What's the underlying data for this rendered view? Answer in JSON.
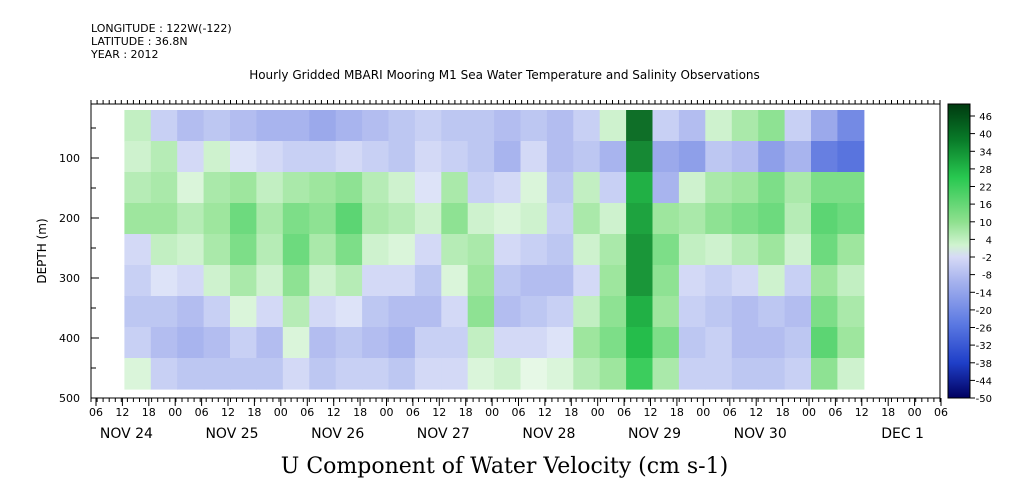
{
  "header": {
    "longitude": "LONGITUDE : 122W(-122)",
    "latitude": "LATITUDE : 36.8N",
    "year": "YEAR : 2012",
    "title": "Hourly Gridded MBARI Mooring M1 Sea Water Temperature and Salinity Observations"
  },
  "caption": "U Component of Water Velocity (cm s-1)",
  "colors": {
    "strong_negative": "#000060",
    "mid_negative": "#3a5bd8",
    "weak_negative": "#a8b4ee",
    "weak_positive": "#b4ecb4",
    "mid_positive": "#28c850",
    "strong_positive": "#003a10",
    "missing": "#ffffff"
  },
  "chart_data": {
    "type": "heatmap",
    "title": "Hourly Gridded MBARI Mooring M1 Sea Water Temperature and Salinity Observations",
    "ylabel": "DEPTH (m)",
    "y_inverted": true,
    "ylim": [
      500,
      10
    ],
    "y_ticks": [
      100,
      200,
      300,
      400,
      500
    ],
    "x_tick_labels": [
      "06",
      "12",
      "18",
      "00",
      "06",
      "12",
      "18",
      "00",
      "06",
      "12",
      "18",
      "00",
      "06",
      "12",
      "18",
      "00",
      "06",
      "12",
      "18",
      "00",
      "06",
      "12",
      "18",
      "00",
      "06",
      "12",
      "18",
      "00",
      "06",
      "12",
      "18",
      "00",
      "06"
    ],
    "day_labels": [
      "NOV 24",
      "NOV 25",
      "NOV 26",
      "NOV 27",
      "NOV 28",
      "NOV 29",
      "NOV 30",
      "DEC 1"
    ],
    "colorbar": {
      "levels": [
        -50,
        -44,
        -38,
        -32,
        -26,
        -20,
        -14,
        -8,
        -2,
        4,
        10,
        16,
        22,
        28,
        34,
        40,
        46
      ],
      "tick_labels": [
        "46",
        "40",
        "34",
        "28",
        "22",
        "16",
        "10",
        "4",
        "-2",
        "-8",
        "-14",
        "-20",
        "-26",
        "-32",
        "-38",
        "-44",
        "-50"
      ]
    },
    "columns": [
      {
        "x": "Nov 24 12:00",
        "profile": [
          6,
          4,
          8,
          12,
          -4,
          -6,
          -8,
          -6,
          2
        ]
      },
      {
        "x": "Nov 24 18:00",
        "profile": [
          -6,
          8,
          10,
          12,
          6,
          -2,
          -8,
          -10,
          -6
        ]
      },
      {
        "x": "Nov 25 00:00",
        "profile": [
          -10,
          -4,
          2,
          8,
          4,
          -4,
          -10,
          -12,
          -8
        ]
      },
      {
        "x": "Nov 25 06:00",
        "profile": [
          -8,
          4,
          10,
          12,
          10,
          4,
          -6,
          -10,
          -8
        ]
      },
      {
        "x": "Nov 25 12:00",
        "profile": [
          -10,
          -2,
          12,
          18,
          16,
          10,
          2,
          -6,
          -8
        ]
      },
      {
        "x": "Nov 25 18:00",
        "profile": [
          -12,
          -4,
          6,
          10,
          8,
          4,
          -4,
          -10,
          -8
        ]
      },
      {
        "x": "Nov 26 00:00",
        "profile": [
          -12,
          -6,
          10,
          16,
          18,
          14,
          8,
          2,
          -4
        ]
      },
      {
        "x": "Nov 26 06:00",
        "profile": [
          -14,
          -6,
          12,
          14,
          10,
          4,
          -4,
          -10,
          -8
        ]
      },
      {
        "x": "Nov 26 12:00",
        "profile": [
          -12,
          -4,
          14,
          20,
          16,
          8,
          -2,
          -8,
          -6
        ]
      },
      {
        "x": "Nov 26 18:00",
        "profile": [
          -10,
          -6,
          8,
          10,
          4,
          -4,
          -8,
          -10,
          -6
        ]
      },
      {
        "x": "Nov 27 00:00",
        "profile": [
          -8,
          -8,
          4,
          8,
          2,
          -4,
          -10,
          -12,
          -8
        ]
      },
      {
        "x": "Nov 27 06:00",
        "profile": [
          -6,
          -4,
          -2,
          4,
          -4,
          -8,
          -10,
          -6,
          -4
        ]
      },
      {
        "x": "Nov 27 12:00",
        "profile": [
          -8,
          -6,
          10,
          14,
          8,
          2,
          -4,
          -6,
          -4
        ]
      },
      {
        "x": "Nov 27 18:00",
        "profile": [
          -8,
          -8,
          -6,
          4,
          10,
          12,
          14,
          6,
          2
        ]
      },
      {
        "x": "Nov 28 00:00",
        "profile": [
          -10,
          -12,
          -4,
          2,
          -4,
          -8,
          -10,
          -4,
          4
        ]
      },
      {
        "x": "Nov 28 06:00",
        "profile": [
          -8,
          -4,
          2,
          4,
          -6,
          -10,
          -8,
          -4,
          0
        ]
      },
      {
        "x": "Nov 28 12:00",
        "profile": [
          -10,
          -10,
          -8,
          -6,
          -8,
          -10,
          -6,
          -2,
          2
        ]
      },
      {
        "x": "Nov 28 18:00",
        "profile": [
          -6,
          -8,
          6,
          10,
          4,
          -4,
          6,
          12,
          8
        ]
      },
      {
        "x": "Nov 29 00:00",
        "profile": [
          4,
          -12,
          -6,
          4,
          10,
          12,
          14,
          16,
          12
        ]
      },
      {
        "x": "Nov 29 06:00",
        "profile": [
          40,
          36,
          30,
          32,
          34,
          34,
          30,
          28,
          24
        ]
      },
      {
        "x": "Nov 29 12:00",
        "profile": [
          -6,
          -14,
          -12,
          12,
          16,
          14,
          12,
          16,
          10
        ]
      },
      {
        "x": "Nov 29 18:00",
        "profile": [
          -10,
          -16,
          4,
          10,
          6,
          -4,
          -6,
          -8,
          -6
        ]
      },
      {
        "x": "Nov 30 00:00",
        "profile": [
          4,
          -8,
          10,
          14,
          4,
          -6,
          -8,
          -6,
          -6
        ]
      },
      {
        "x": "Nov 30 06:00",
        "profile": [
          10,
          -10,
          12,
          16,
          8,
          -4,
          -10,
          -10,
          -8
        ]
      },
      {
        "x": "Nov 30 12:00",
        "profile": [
          14,
          -16,
          16,
          18,
          12,
          4,
          -8,
          -10,
          -8
        ]
      },
      {
        "x": "Nov 30 18:00",
        "profile": [
          -6,
          -12,
          10,
          8,
          4,
          -6,
          -10,
          -8,
          -6
        ]
      },
      {
        "x": "Dec 1 00:00",
        "profile": [
          -14,
          -22,
          16,
          20,
          18,
          12,
          16,
          20,
          14
        ]
      },
      {
        "x": "Dec 1 06:00",
        "profile": [
          -20,
          -24,
          16,
          18,
          12,
          6,
          10,
          12,
          4
        ]
      }
    ]
  }
}
